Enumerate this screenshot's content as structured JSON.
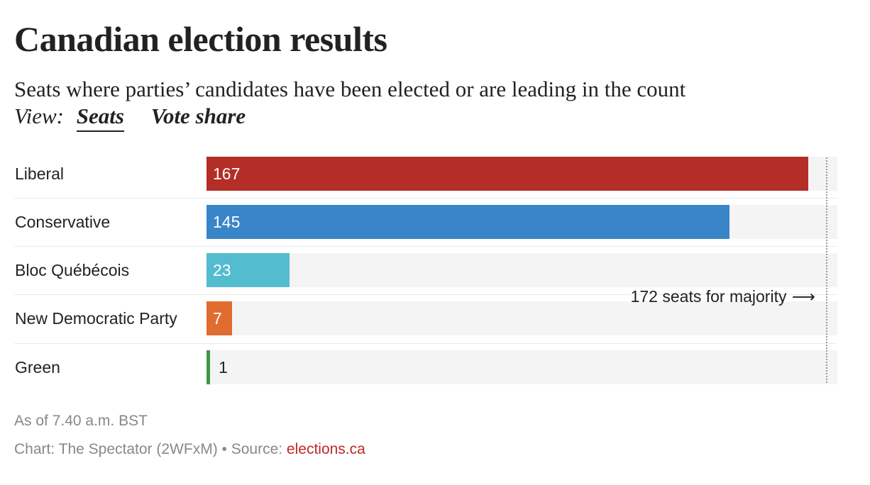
{
  "chart_data": {
    "type": "bar",
    "orientation": "horizontal",
    "title": "Canadian election results",
    "subtitle": "Seats where parties’ candidates have been elected or are leading in the count",
    "view": {
      "label": "View:",
      "options": [
        "Seats",
        "Vote share"
      ],
      "selected": "Seats"
    },
    "categories": [
      "Liberal",
      "Conservative",
      "Bloc Québécois",
      "New Democratic Party",
      "Green"
    ],
    "values": [
      167,
      145,
      23,
      7,
      1
    ],
    "colors": [
      "#b42d27",
      "#3886c8",
      "#54bccf",
      "#e06c30",
      "#3a9a46"
    ],
    "value_text_colors": [
      "#ffffff",
      "#ffffff",
      "#ffffff",
      "#ffffff",
      "#222222"
    ],
    "xlim": [
      0,
      175
    ],
    "reference_line": {
      "value": 172,
      "label": "172 seats for majority",
      "arrow": "⟶"
    }
  },
  "footer": {
    "timestamp": "As of 7.40 a.m. BST",
    "credit_prefix": "Chart: The Spectator (2WFxM) • Source: ",
    "source_link": "elections.ca"
  }
}
